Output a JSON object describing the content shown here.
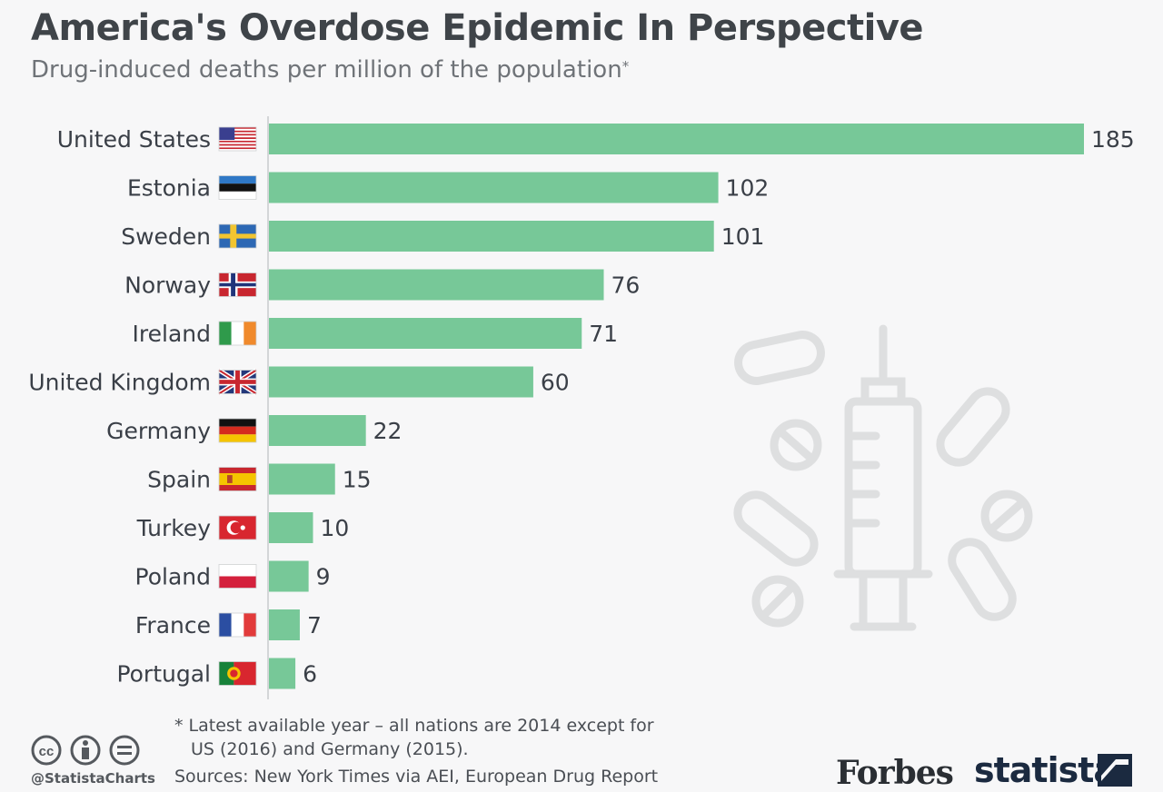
{
  "title": "America's Overdose Epidemic In Perspective",
  "subtitle": "Drug-induced deaths per million of the population",
  "subtitle_mark": "*",
  "footnote_line1": "* Latest available year – all nations are 2014 except for",
  "footnote_line2": "US (2016) and Germany (2015).",
  "sources": "Sources: New York Times via AEI, European Drug Report",
  "handle": "@StatistaCharts",
  "brand_forbes": "Forbes",
  "brand_statista": "statista",
  "colors": {
    "bar": "#77c898",
    "axis": "#c9cbcd",
    "watermark": "#d9dadb"
  },
  "chart_data": {
    "type": "bar",
    "orientation": "horizontal",
    "title": "America's Overdose Epidemic In Perspective",
    "subtitle": "Drug-induced deaths per million of the population*",
    "categories": [
      "United States",
      "Estonia",
      "Sweden",
      "Norway",
      "Ireland",
      "United Kingdom",
      "Germany",
      "Spain",
      "Turkey",
      "Poland",
      "France",
      "Portugal"
    ],
    "flags": [
      "us",
      "ee",
      "se",
      "no",
      "ie",
      "gb",
      "de",
      "es",
      "tr",
      "pl",
      "fr",
      "pt"
    ],
    "values": [
      185,
      102,
      101,
      76,
      71,
      60,
      22,
      15,
      10,
      9,
      7,
      6
    ],
    "xlim": [
      0,
      185
    ],
    "data_labels": true,
    "grid": false
  }
}
